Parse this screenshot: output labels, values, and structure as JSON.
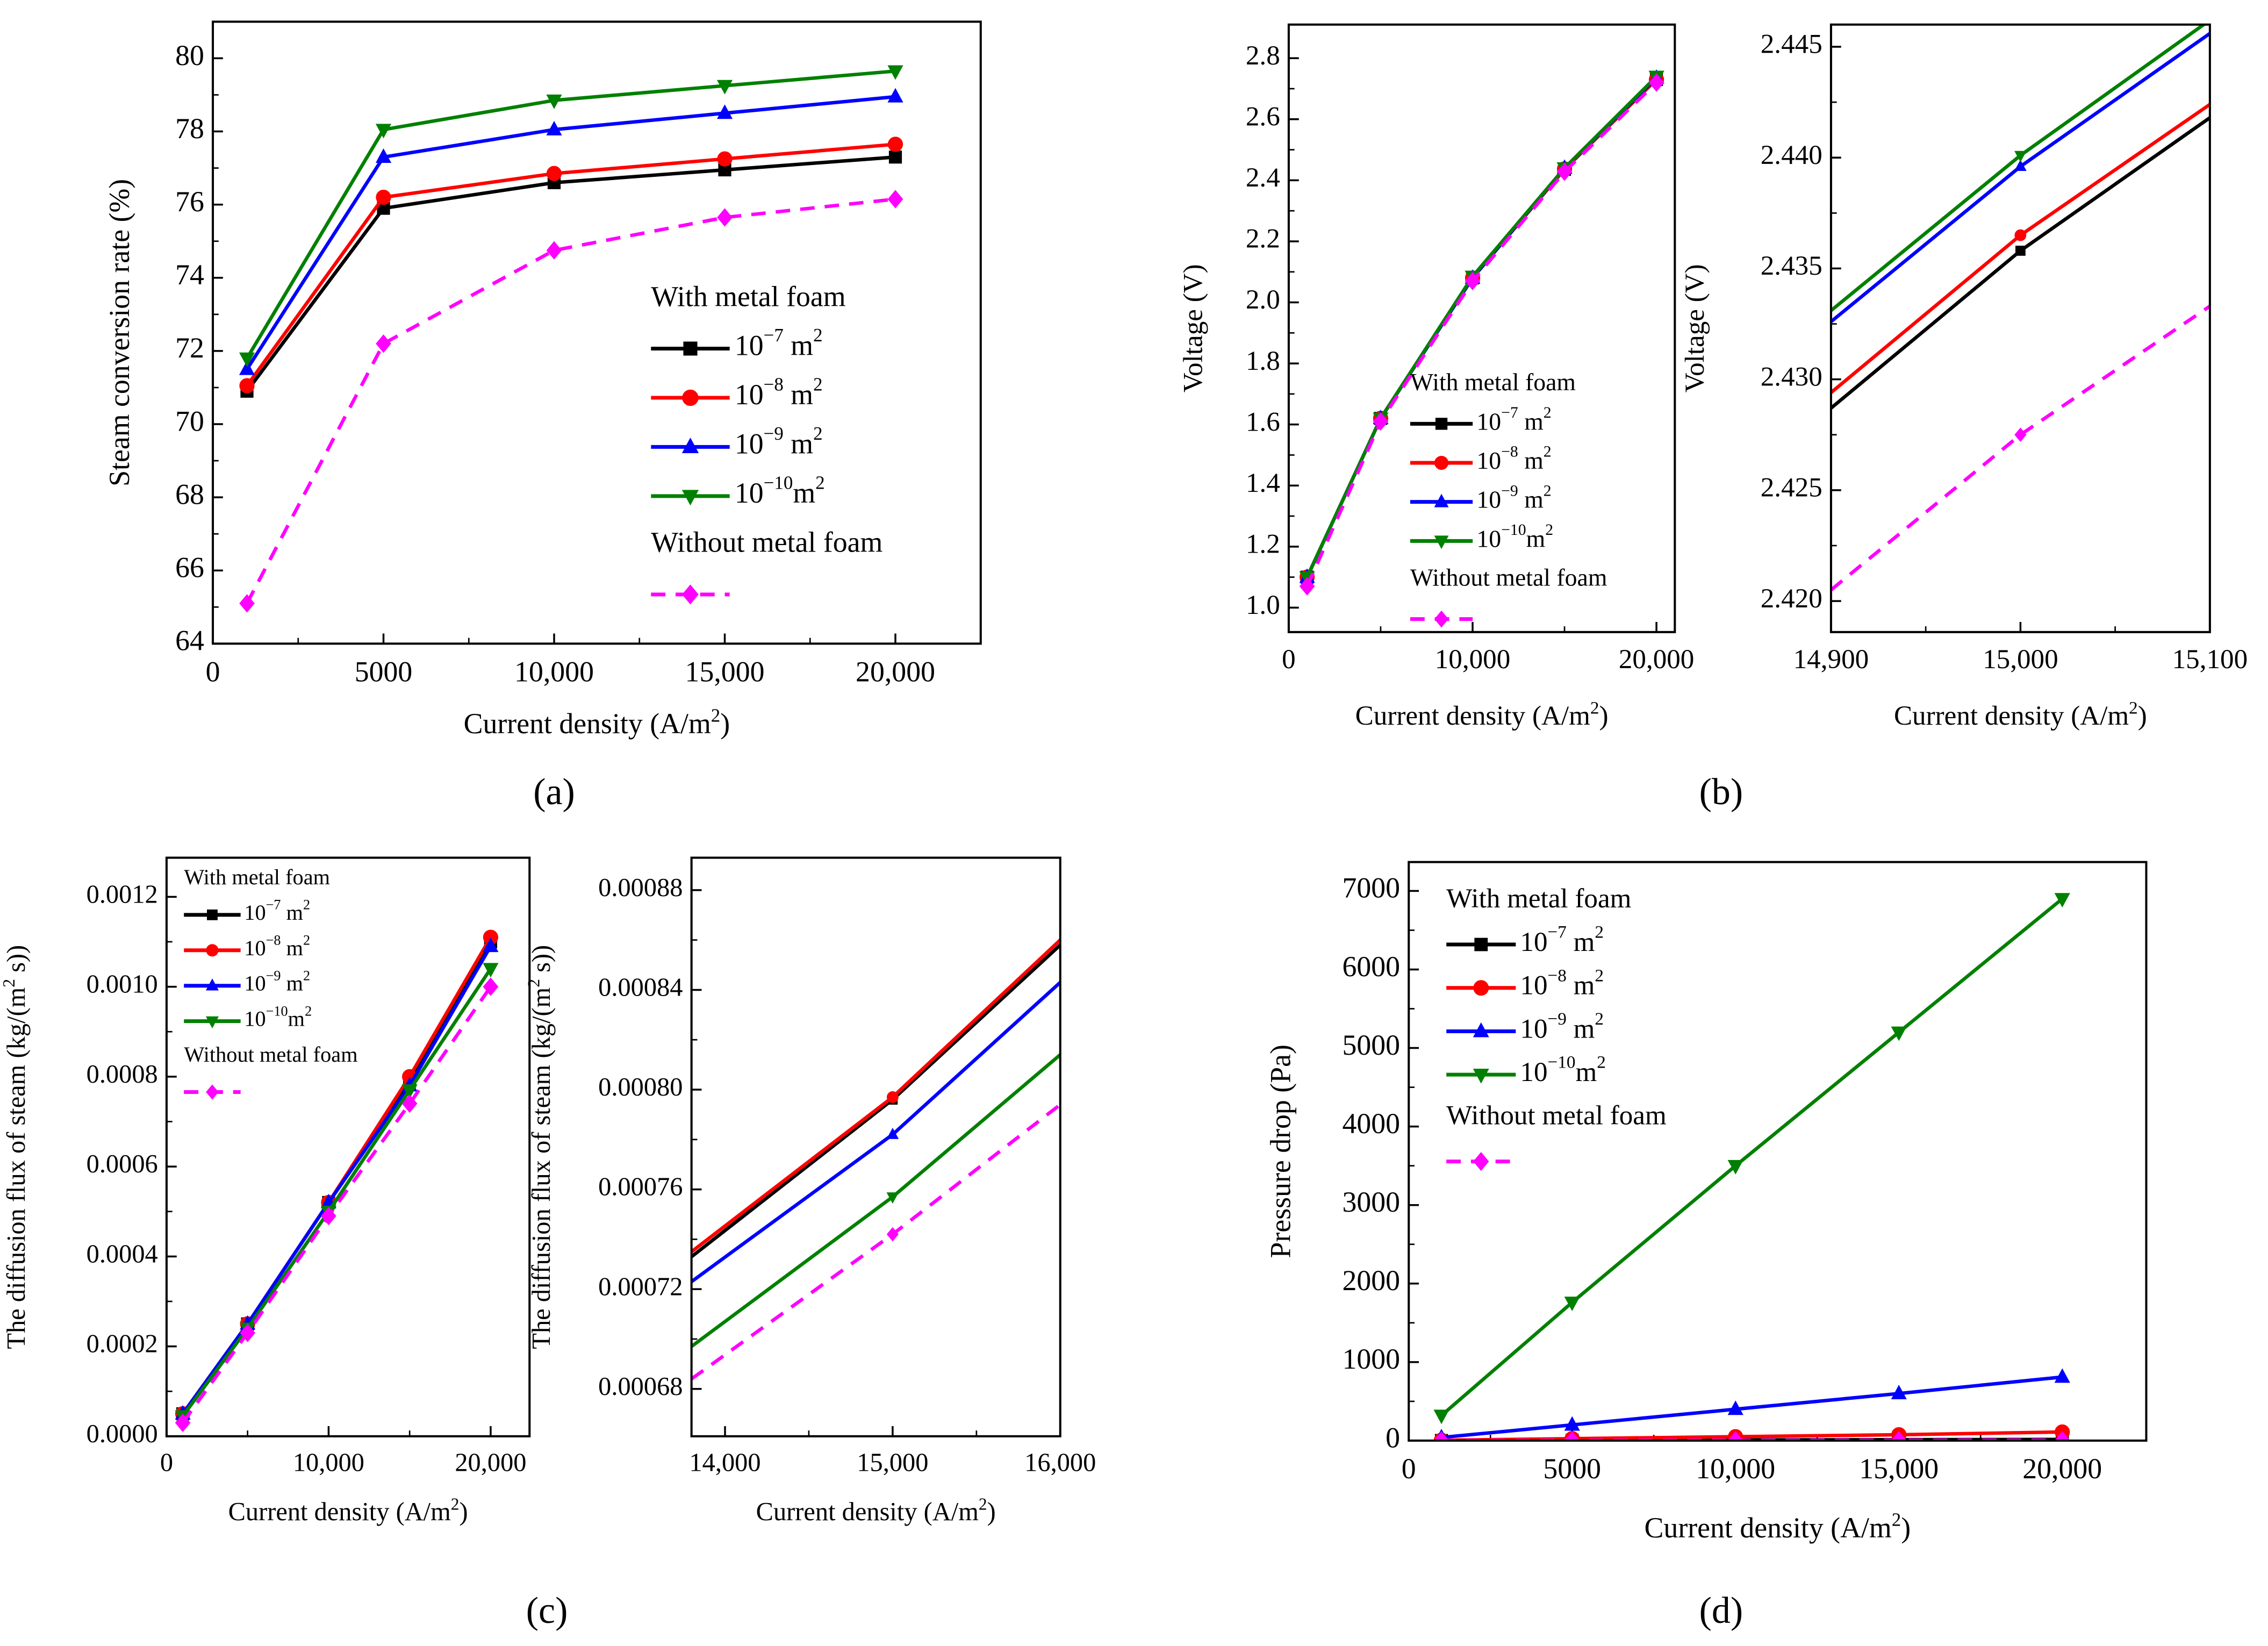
{
  "colors": {
    "black": "#000000",
    "red": "#ff0000",
    "blue": "#0000ff",
    "green": "#008000",
    "magenta": "#ff00ff"
  },
  "legend_titles": {
    "with": "With metal foam",
    "without": "Without metal foam"
  },
  "series_defs": [
    {
      "key": "k7",
      "base": "10",
      "exp": "−7",
      "unit": " m",
      "uexp": "2",
      "color": "#000000",
      "marker": "square",
      "dash": false
    },
    {
      "key": "k8",
      "base": "10",
      "exp": "−8",
      "unit": " m",
      "uexp": "2",
      "color": "#ff0000",
      "marker": "circle",
      "dash": false
    },
    {
      "key": "k9",
      "base": "10",
      "exp": "−9",
      "unit": " m",
      "uexp": "2",
      "color": "#0000ff",
      "marker": "triangle-up",
      "dash": false
    },
    {
      "key": "k10",
      "base": "10",
      "exp": "−10",
      "unit": "m",
      "uexp": "2",
      "color": "#008000",
      "marker": "triangle-down",
      "dash": false
    },
    {
      "key": "none",
      "base": "",
      "exp": "",
      "unit": "",
      "uexp": "",
      "color": "#ff00ff",
      "marker": "diamond",
      "dash": true
    }
  ],
  "chart_data": [
    {
      "id": "a",
      "panel_label": "(a)",
      "type": "line",
      "xlabel": [
        {
          "t": "Current density (A/m"
        },
        {
          "t": "2",
          "sup": true
        },
        {
          "t": ")"
        }
      ],
      "ylabel": [
        {
          "t": "Steam conversion rate (%)"
        }
      ],
      "xlim": [
        0,
        22500
      ],
      "ylim": [
        64,
        81
      ],
      "xticks": [
        [
          0,
          "0"
        ],
        [
          5000,
          "5000"
        ],
        [
          10000,
          "10,000"
        ],
        [
          15000,
          "15,000"
        ],
        [
          20000,
          "20,000"
        ]
      ],
      "yticks": [
        [
          64,
          "64"
        ],
        [
          66,
          "66"
        ],
        [
          68,
          "68"
        ],
        [
          70,
          "70"
        ],
        [
          72,
          "72"
        ],
        [
          74,
          "74"
        ],
        [
          76,
          "76"
        ],
        [
          78,
          "78"
        ],
        [
          80,
          "80"
        ]
      ],
      "x": [
        1000,
        5000,
        10000,
        15000,
        20000
      ],
      "series": {
        "k7": [
          70.9,
          75.9,
          76.6,
          76.95,
          77.3
        ],
        "k8": [
          71.05,
          76.2,
          76.85,
          77.25,
          77.65
        ],
        "k9": [
          71.5,
          77.3,
          78.05,
          78.5,
          78.95
        ],
        "k10": [
          71.8,
          78.05,
          78.85,
          79.25,
          79.65
        ],
        "none": [
          65.1,
          72.2,
          74.75,
          75.65,
          76.15
        ]
      },
      "legend": true
    },
    {
      "id": "b1",
      "panel_label": "(b)",
      "type": "line",
      "xlabel": [
        {
          "t": "Current density (A/m"
        },
        {
          "t": "2",
          "sup": true
        },
        {
          "t": ")"
        }
      ],
      "ylabel": [
        {
          "t": "Voltage (V)"
        }
      ],
      "xlim": [
        0,
        21000
      ],
      "ylim": [
        0.92,
        2.91
      ],
      "xticks": [
        [
          0,
          "0"
        ],
        [
          10000,
          "10,000"
        ],
        [
          20000,
          "20,000"
        ]
      ],
      "yticks": [
        [
          1.0,
          "1.0"
        ],
        [
          1.2,
          "1.2"
        ],
        [
          1.4,
          "1.4"
        ],
        [
          1.6,
          "1.6"
        ],
        [
          1.8,
          "1.8"
        ],
        [
          2.0,
          "2.0"
        ],
        [
          2.2,
          "2.2"
        ],
        [
          2.4,
          "2.4"
        ],
        [
          2.6,
          "2.6"
        ],
        [
          2.8,
          "2.8"
        ]
      ],
      "x": [
        1000,
        5000,
        10000,
        15000,
        20000
      ],
      "series": {
        "k7": [
          1.1,
          1.62,
          2.08,
          2.436,
          2.73
        ],
        "k8": [
          1.1,
          1.62,
          2.08,
          2.437,
          2.73
        ],
        "k9": [
          1.1,
          1.62,
          2.08,
          2.44,
          2.735
        ],
        "k10": [
          1.1,
          1.62,
          2.085,
          2.44,
          2.74
        ],
        "none": [
          1.07,
          1.61,
          2.07,
          2.428,
          2.72
        ]
      },
      "legend": true
    },
    {
      "id": "b2",
      "panel_label": "",
      "type": "line",
      "xlabel": [
        {
          "t": "Current density (A/m"
        },
        {
          "t": "2",
          "sup": true
        },
        {
          "t": ")"
        }
      ],
      "ylabel": [
        {
          "t": "Voltage (V)"
        }
      ],
      "xlim": [
        14900,
        15100
      ],
      "ylim": [
        2.4186,
        2.446
      ],
      "xticks": [
        [
          14900,
          "14,900"
        ],
        [
          15000,
          "15,000"
        ],
        [
          15100,
          "15,100"
        ]
      ],
      "yticks": [
        [
          2.42,
          "2.420"
        ],
        [
          2.425,
          "2.425"
        ],
        [
          2.43,
          "2.430"
        ],
        [
          2.435,
          "2.435"
        ],
        [
          2.44,
          "2.440"
        ],
        [
          2.445,
          "2.445"
        ]
      ],
      "x": [
        14900,
        15000,
        15100
      ],
      "marker_x": [
        15000
      ],
      "series": {
        "k7": [
          2.4287,
          2.4358,
          2.4418
        ],
        "k8": [
          2.4294,
          2.4365,
          2.4424
        ],
        "k9": [
          2.4326,
          2.4396,
          2.4456
        ],
        "k10": [
          2.4331,
          2.4401,
          2.4462
        ],
        "none": [
          2.4205,
          2.4275,
          2.4333
        ]
      },
      "legend": false
    },
    {
      "id": "c1",
      "panel_label": "(c)",
      "type": "line",
      "xlabel": [
        {
          "t": "Current density (A/m"
        },
        {
          "t": "2",
          "sup": true
        },
        {
          "t": ")"
        }
      ],
      "ylabel": [
        {
          "t": "The diffusion flux of steam (kg/(m"
        },
        {
          "t": "2",
          "sup": true
        },
        {
          "t": " s))"
        }
      ],
      "xlim": [
        0,
        22400
      ],
      "ylim": [
        0,
        0.001287
      ],
      "xticks": [
        [
          0,
          "0"
        ],
        [
          10000,
          "10,000"
        ],
        [
          20000,
          "20,000"
        ]
      ],
      "yticks": [
        [
          0,
          "0.0000"
        ],
        [
          0.0002,
          "0.0002"
        ],
        [
          0.0004,
          "0.0004"
        ],
        [
          0.0006,
          "0.0006"
        ],
        [
          0.0008,
          "0.0008"
        ],
        [
          0.001,
          "0.0010"
        ],
        [
          0.0012,
          "0.0012"
        ]
      ],
      "x": [
        1000,
        5000,
        10000,
        15000,
        20000
      ],
      "series": {
        "k7": [
          5e-05,
          0.00025,
          0.00052,
          0.00079,
          0.0011
        ],
        "k8": [
          5e-05,
          0.00025,
          0.00052,
          0.0008,
          0.00111
        ],
        "k9": [
          5e-05,
          0.00025,
          0.00052,
          0.00078,
          0.00109
        ],
        "k10": [
          4.5e-05,
          0.00024,
          0.0005,
          0.00077,
          0.00104
        ],
        "none": [
          3e-05,
          0.00023,
          0.00049,
          0.00074,
          0.001
        ]
      },
      "legend": true
    },
    {
      "id": "c2",
      "panel_label": "",
      "type": "line",
      "xlabel": [
        {
          "t": "Current density (A/m"
        },
        {
          "t": "2",
          "sup": true
        },
        {
          "t": ")"
        }
      ],
      "ylabel": [
        {
          "t": "The diffusion flux of steam (kg/(m"
        },
        {
          "t": "2",
          "sup": true
        },
        {
          "t": " s))"
        }
      ],
      "xlim": [
        13800,
        16000
      ],
      "ylim": [
        0.000661,
        0.000893
      ],
      "xticks": [
        [
          14000,
          "14,000"
        ],
        [
          15000,
          "15,000"
        ],
        [
          16000,
          "16,000"
        ]
      ],
      "yticks": [
        [
          0.00068,
          "0.00068"
        ],
        [
          0.00072,
          "0.00072"
        ],
        [
          0.00076,
          "0.00076"
        ],
        [
          0.0008,
          "0.00080"
        ],
        [
          0.00084,
          "0.00084"
        ],
        [
          0.00088,
          "0.00088"
        ]
      ],
      "x": [
        13800,
        15000,
        16000
      ],
      "marker_x": [
        15000
      ],
      "series": {
        "k7": [
          0.000733,
          0.000796,
          0.000858
        ],
        "k8": [
          0.000735,
          0.000797,
          0.00086
        ],
        "k9": [
          0.000723,
          0.000782,
          0.000843
        ],
        "k10": [
          0.000697,
          0.000757,
          0.000814
        ],
        "none": [
          0.000684,
          0.000742,
          0.000794
        ]
      },
      "legend": false
    },
    {
      "id": "d",
      "panel_label": "(d)",
      "type": "line",
      "xlabel": [
        {
          "t": "Current density (A/m"
        },
        {
          "t": "2",
          "sup": true
        },
        {
          "t": ")"
        }
      ],
      "ylabel": [
        {
          "t": "Pressure drop (Pa)"
        }
      ],
      "xlim": [
        0,
        22570
      ],
      "ylim": [
        0,
        7368
      ],
      "xticks": [
        [
          0,
          "0"
        ],
        [
          5000,
          "5000"
        ],
        [
          10000,
          "10,000"
        ],
        [
          15000,
          "15,000"
        ],
        [
          20000,
          "20,000"
        ]
      ],
      "yticks": [
        [
          0,
          "0"
        ],
        [
          1000,
          "1000"
        ],
        [
          2000,
          "2000"
        ],
        [
          3000,
          "3000"
        ],
        [
          4000,
          "4000"
        ],
        [
          5000,
          "5000"
        ],
        [
          6000,
          "6000"
        ],
        [
          7000,
          "7000"
        ]
      ],
      "x": [
        1000,
        5000,
        10000,
        15000,
        20000
      ],
      "series": {
        "k7": [
          2,
          5,
          8,
          12,
          15
        ],
        "k8": [
          5,
          25,
          50,
          75,
          110
        ],
        "k9": [
          40,
          200,
          400,
          600,
          810
        ],
        "k10": [
          320,
          1760,
          3500,
          5200,
          6900
        ],
        "none": [
          1,
          2,
          3,
          4,
          5
        ]
      },
      "legend": true
    }
  ]
}
